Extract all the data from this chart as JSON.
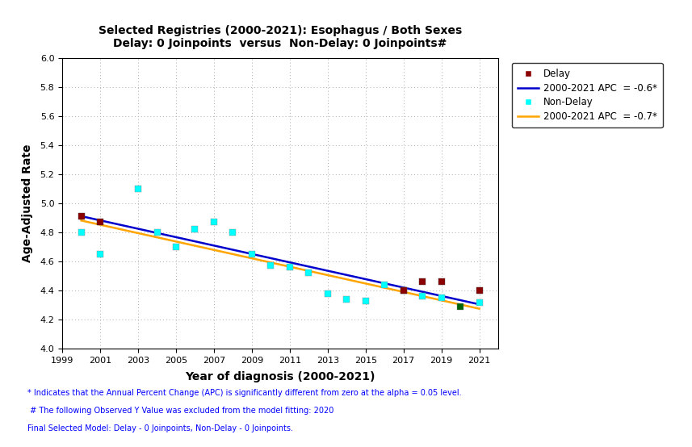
{
  "title_line1": "Selected Registries (2000-2021): Esophagus / Both Sexes",
  "title_line2": "Delay: 0 Joinpoints  versus  Non-Delay: 0 Joinpoints#",
  "xlabel": "Year of diagnosis (2000-2021)",
  "ylabel": "Age-Adjusted Rate",
  "xlim": [
    1999,
    2022
  ],
  "ylim": [
    4.0,
    6.0
  ],
  "xticks": [
    1999,
    2001,
    2003,
    2005,
    2007,
    2009,
    2011,
    2013,
    2015,
    2017,
    2019,
    2021
  ],
  "yticks": [
    4.0,
    4.2,
    4.4,
    4.6,
    4.8,
    5.0,
    5.2,
    5.4,
    5.6,
    5.8,
    6.0
  ],
  "delay_years": [
    2000,
    2001,
    2017,
    2018,
    2019,
    2021
  ],
  "delay_values": [
    4.91,
    4.87,
    4.4,
    4.46,
    4.46,
    4.4
  ],
  "nodelay_years": [
    2000,
    2001,
    2003,
    2004,
    2005,
    2006,
    2007,
    2008,
    2009,
    2010,
    2011,
    2012,
    2013,
    2014,
    2015,
    2016,
    2017,
    2018,
    2019,
    2020,
    2021
  ],
  "nodelay_values": [
    4.8,
    4.65,
    5.1,
    4.8,
    4.7,
    4.82,
    4.87,
    4.8,
    4.65,
    4.57,
    4.56,
    4.52,
    4.38,
    4.34,
    4.33,
    4.44,
    4.4,
    4.36,
    4.35,
    4.29,
    4.32
  ],
  "delay_line_x": [
    2000,
    2021
  ],
  "delay_line_y": [
    4.912,
    4.305
  ],
  "nodelay_line_x": [
    2000,
    2021
  ],
  "nodelay_line_y": [
    4.882,
    4.275
  ],
  "delay_color": "#8B0000",
  "delay_line_color": "#0000CC",
  "nodelay_color": "#00FFFF",
  "nodelay_line_color": "#FFA500",
  "legend_delay_label": "Delay",
  "legend_delay_apc_label": "2000-2021 APC  = -0.6*",
  "legend_nodelay_label": "Non-Delay",
  "legend_nodelay_apc_label": "2000-2021 APC  = -0.7*",
  "footnote1": "* Indicates that the Annual Percent Change (APC) is significantly different from zero at the alpha = 0.05 level.",
  "footnote2": " # The following Observed Y Value was excluded from the model fitting: 2020",
  "footnote3": "Final Selected Model: Delay - 0 Joinpoints, Non-Delay - 0 Joinpoints.",
  "background_color": "#FFFFFF",
  "grid_color": "#AAAAAA",
  "special_2020_color": "#006400"
}
